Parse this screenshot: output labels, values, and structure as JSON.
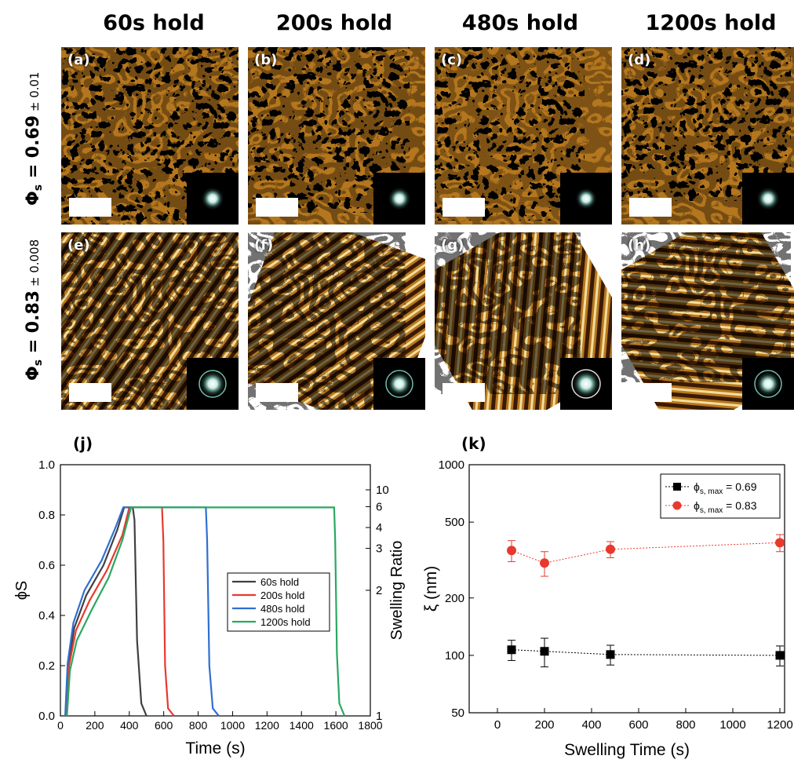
{
  "figure": {
    "columns": [
      "60s hold",
      "200s hold",
      "480s hold",
      "1200s hold"
    ],
    "rows": [
      {
        "symbol": "Φ",
        "sub": "s",
        "value": " = 0.69",
        "err": " ± 0.01"
      },
      {
        "symbol": "Φ",
        "sub": "s",
        "value": " = 0.83",
        "err": " ± 0.008"
      }
    ],
    "panels": [
      "(a)",
      "(b)",
      "(c)",
      "(d)",
      "(e)",
      "(f)",
      "(g)",
      "(h)"
    ],
    "colors": {
      "afm_dark": "#3a1a05",
      "afm_mid": "#b4761e",
      "afm_light": "#f8e6a8"
    }
  },
  "chart_data": [
    {
      "id": "j",
      "panel_label": "(j)",
      "type": "line",
      "xlabel": "Time (s)",
      "ylabel": "ϕS",
      "y2label": "Swelling Ratio",
      "xlim": [
        0,
        1800
      ],
      "ylim": [
        0.0,
        1.0
      ],
      "xticks": [
        0,
        200,
        400,
        600,
        800,
        1000,
        1200,
        1400,
        1600,
        1800
      ],
      "yticks": [
        "0.0",
        "0.2",
        "0.4",
        "0.6",
        "0.8",
        "1.0"
      ],
      "y2ticks": [
        {
          "label": "1",
          "phi": 0.0
        },
        {
          "label": "2",
          "phi": 0.5
        },
        {
          "label": "3",
          "phi": 0.667
        },
        {
          "label": "4",
          "phi": 0.75
        },
        {
          "label": "6",
          "phi": 0.833
        },
        {
          "label": "10",
          "phi": 0.9
        }
      ],
      "legend_position": "center-right",
      "series": [
        {
          "name": "60s hold",
          "color": "#404040",
          "points": [
            [
              30,
              0
            ],
            [
              45,
              0.2
            ],
            [
              80,
              0.35
            ],
            [
              150,
              0.48
            ],
            [
              250,
              0.6
            ],
            [
              330,
              0.74
            ],
            [
              370,
              0.83
            ],
            [
              420,
              0.83
            ],
            [
              430,
              0.78
            ],
            [
              445,
              0.3
            ],
            [
              470,
              0.05
            ],
            [
              500,
              0.0
            ]
          ]
        },
        {
          "name": "200s hold",
          "color": "#e8392f",
          "points": [
            [
              35,
              0
            ],
            [
              50,
              0.2
            ],
            [
              90,
              0.34
            ],
            [
              170,
              0.46
            ],
            [
              270,
              0.58
            ],
            [
              360,
              0.72
            ],
            [
              400,
              0.83
            ],
            [
              590,
              0.83
            ],
            [
              598,
              0.7
            ],
            [
              608,
              0.2
            ],
            [
              625,
              0.03
            ],
            [
              660,
              0.0
            ]
          ]
        },
        {
          "name": "480s hold",
          "color": "#2f6fd0",
          "points": [
            [
              28,
              0
            ],
            [
              42,
              0.21
            ],
            [
              75,
              0.37
            ],
            [
              140,
              0.5
            ],
            [
              240,
              0.62
            ],
            [
              320,
              0.75
            ],
            [
              365,
              0.83
            ],
            [
              845,
              0.83
            ],
            [
              852,
              0.7
            ],
            [
              865,
              0.2
            ],
            [
              885,
              0.03
            ],
            [
              920,
              0.0
            ]
          ]
        },
        {
          "name": "1200s hold",
          "color": "#2aa860",
          "points": [
            [
              38,
              0
            ],
            [
              55,
              0.18
            ],
            [
              95,
              0.3
            ],
            [
              180,
              0.42
            ],
            [
              280,
              0.55
            ],
            [
              360,
              0.7
            ],
            [
              410,
              0.83
            ],
            [
              1590,
              0.83
            ],
            [
              1596,
              0.7
            ],
            [
              1606,
              0.25
            ],
            [
              1620,
              0.05
            ],
            [
              1650,
              0.0
            ]
          ]
        }
      ]
    },
    {
      "id": "k",
      "panel_label": "(k)",
      "type": "scatter",
      "xlabel": "Swelling Time (s)",
      "ylabel": "ξ (nm)",
      "yscale": "log",
      "xlim": [
        -120,
        1220
      ],
      "ylim": [
        50,
        1000
      ],
      "xticks": [
        0,
        200,
        400,
        600,
        800,
        1000,
        1200
      ],
      "yticks": [
        50,
        100,
        200,
        500,
        1000
      ],
      "legend_position": "top-right",
      "series": [
        {
          "name": "ϕs, max = 0.69",
          "legend_symbol": "ϕ",
          "legend_sub": "s, max",
          "legend_value": " = 0.69",
          "color": "#000000",
          "marker": "square",
          "x": [
            60,
            200,
            480,
            1200
          ],
          "y": [
            107,
            105,
            101,
            100
          ],
          "err": [
            13,
            18,
            12,
            12
          ]
        },
        {
          "name": "ϕs, max = 0.83",
          "legend_symbol": "ϕ",
          "legend_sub": "s, max",
          "legend_value": " = 0.83",
          "color": "#e8392f",
          "marker": "circle",
          "x": [
            60,
            200,
            480,
            1200
          ],
          "y": [
            355,
            305,
            360,
            390
          ],
          "err": [
            45,
            45,
            35,
            40
          ]
        }
      ]
    }
  ]
}
